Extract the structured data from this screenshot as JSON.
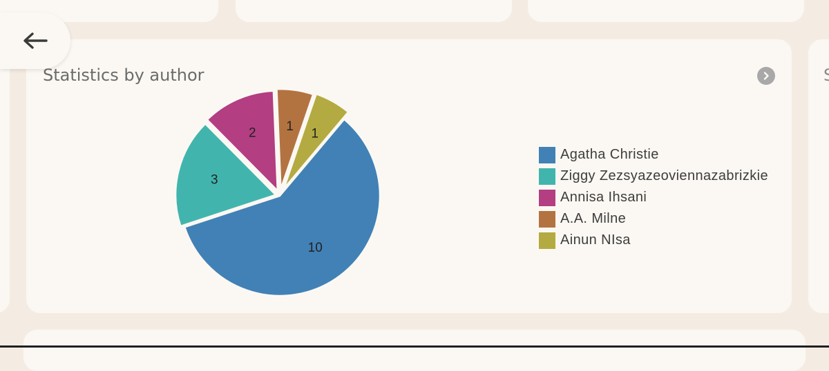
{
  "card": {
    "title": "Statistics by author",
    "next_card_title_peek": "S"
  },
  "icons": {
    "back": "arrow-left-icon",
    "more": "chevron-right-icon"
  },
  "colors": {
    "background": "#f4ece2",
    "card": "#fbf8f3",
    "Agatha Christie": "#4181b6",
    "Ziggy Zezsyazeoviennazabrizkie": "#41b5ad",
    "Annisa Ihsani": "#b33e82",
    "A.A. Milne": "#b37341",
    "Ainun NIsa": "#b3ab41"
  },
  "chart_data": {
    "type": "pie",
    "title": "Statistics by author",
    "categories": [
      "Agatha Christie",
      "Ziggy Zezsyazeoviennazabrizkie",
      "Annisa Ihsani",
      "A.A. Milne",
      "Ainun NIsa"
    ],
    "values": [
      10,
      3,
      2,
      1,
      1
    ],
    "colors": [
      "#4181b6",
      "#41b5ad",
      "#b33e82",
      "#b37341",
      "#b3ab41"
    ],
    "legend_position": "right",
    "exploded": true
  }
}
